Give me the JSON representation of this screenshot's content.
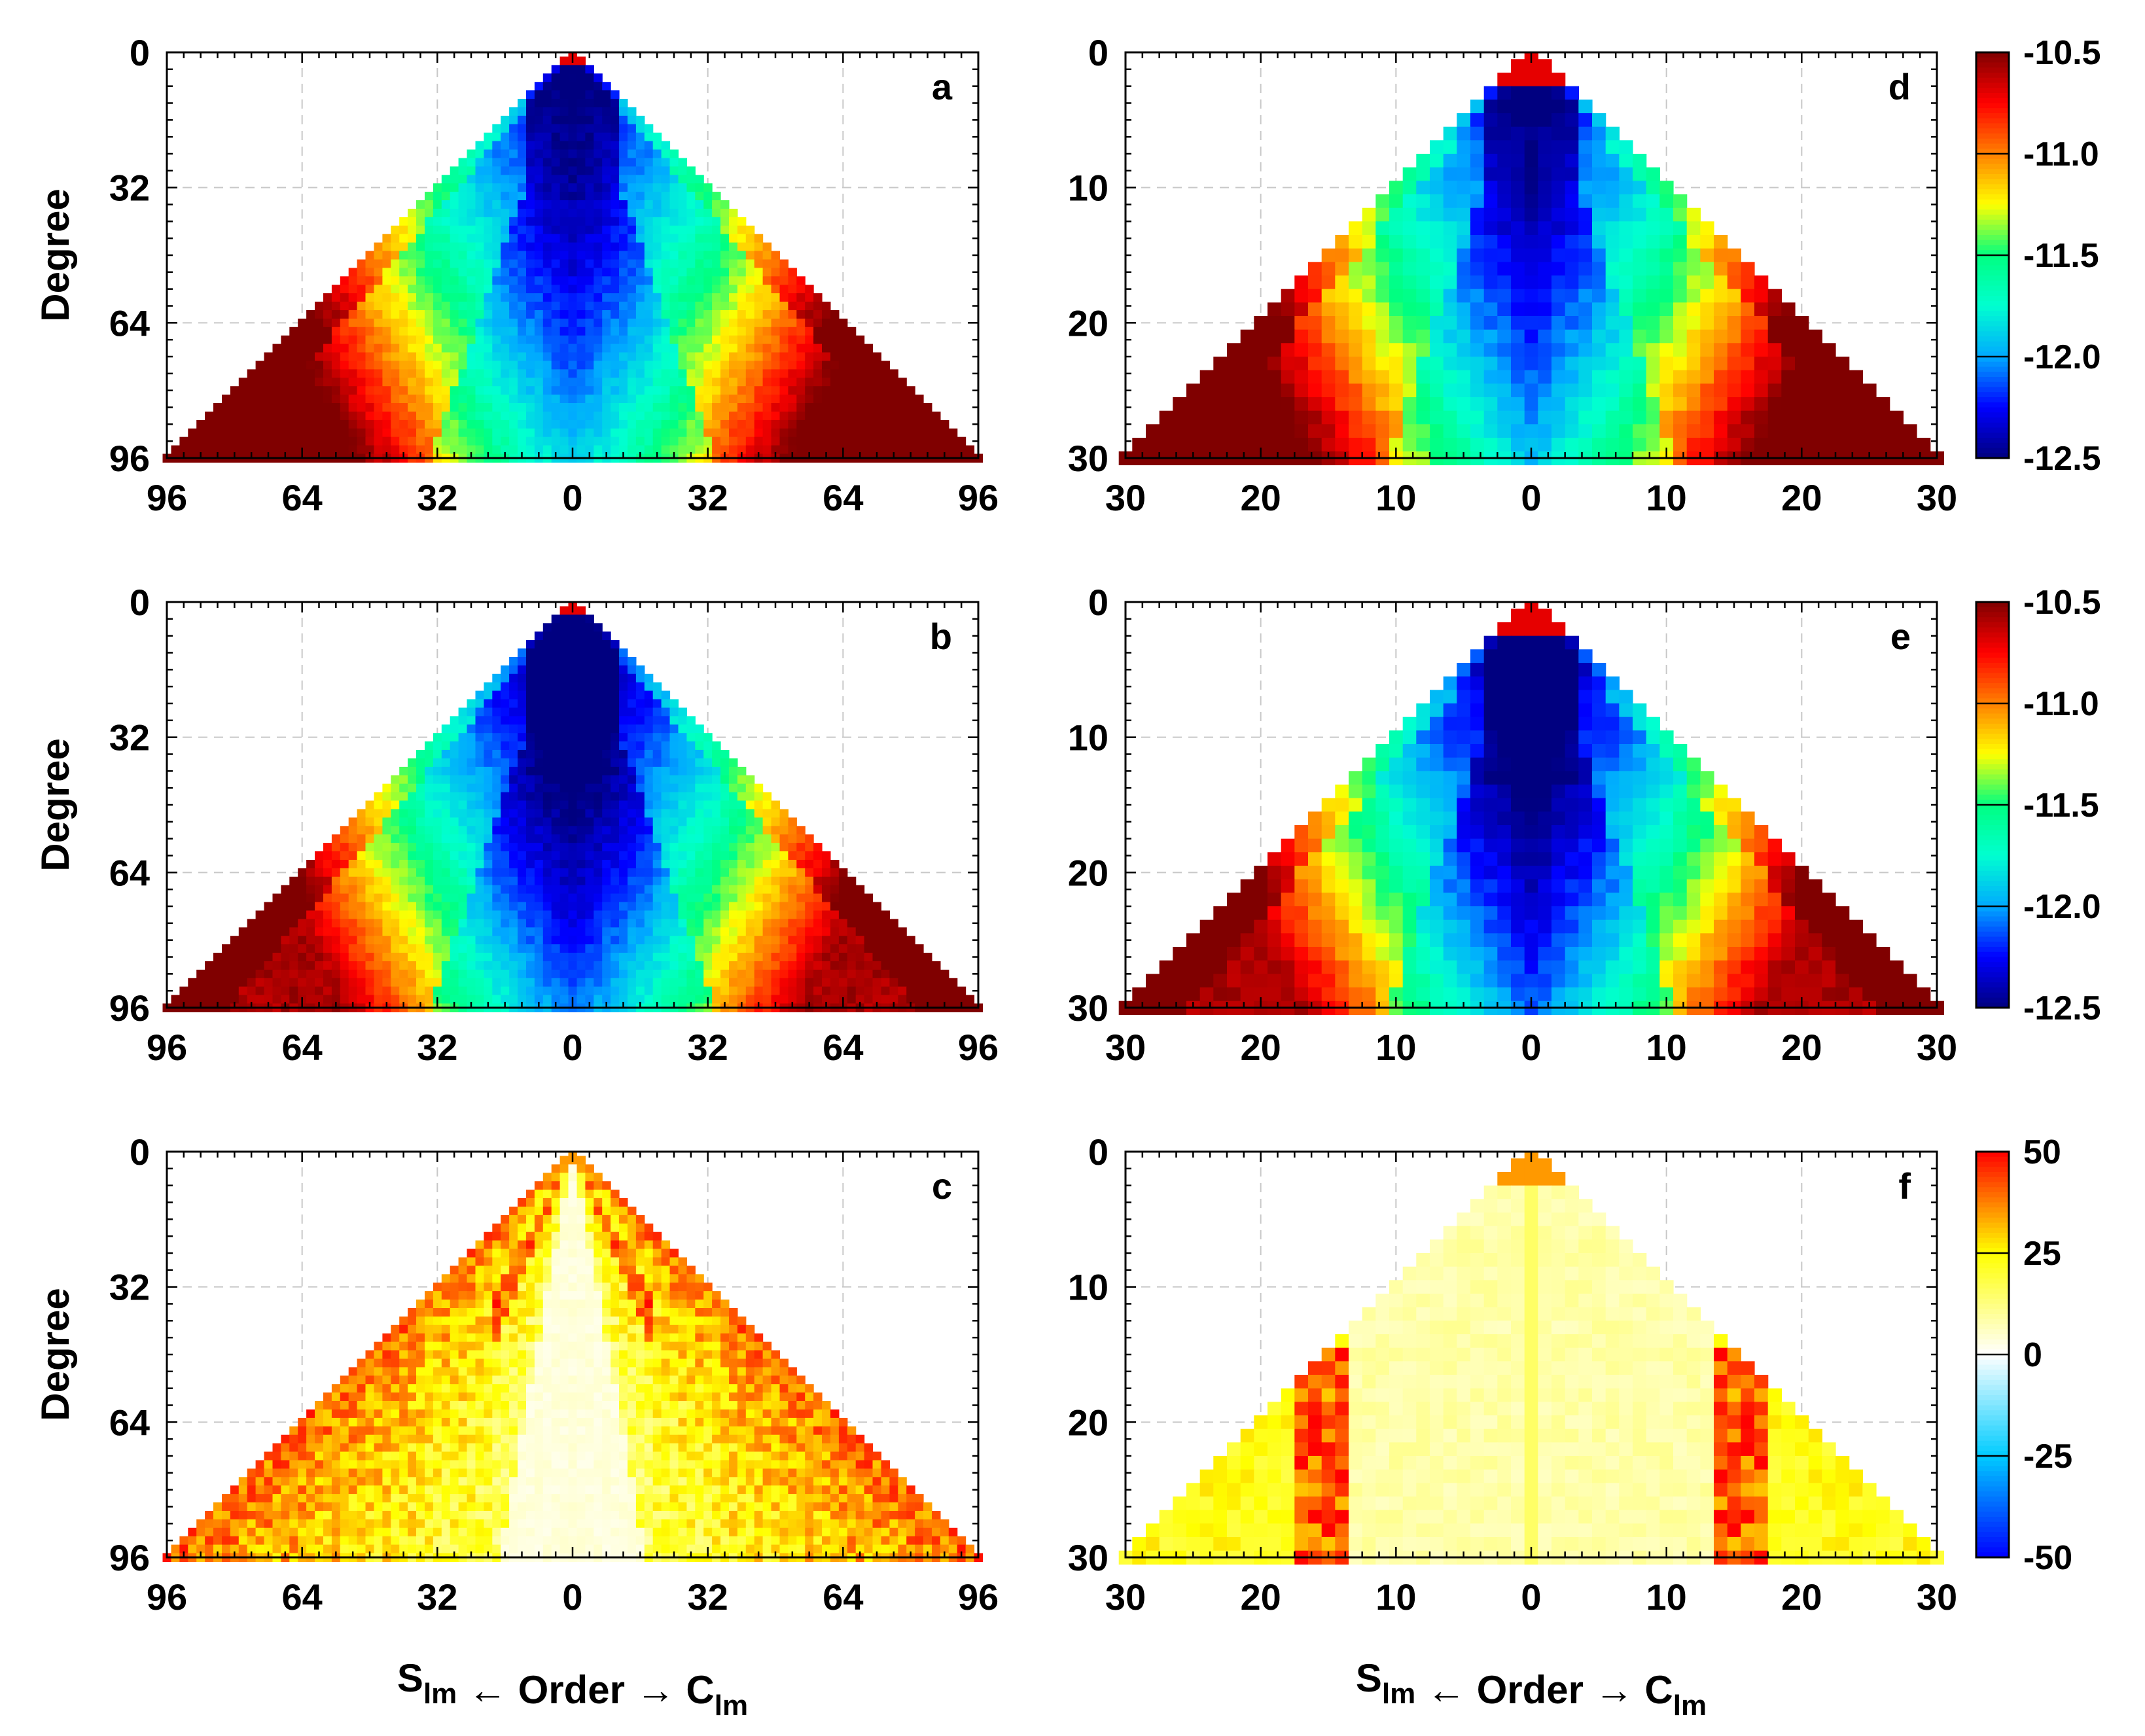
{
  "chart_data": [
    {
      "id": "a",
      "type": "heatmap",
      "panel_label": "a",
      "title": "",
      "ylabel": "Degree",
      "xlabel": "",
      "xlim": [
        -96,
        96
      ],
      "ylim": [
        0,
        96
      ],
      "y_inverted": true,
      "x_tick_labels": [
        "96",
        "64",
        "32",
        "0",
        "32",
        "64",
        "96"
      ],
      "y_tick_labels": [
        "0",
        "32",
        "64",
        "96"
      ],
      "colorbar": "cb1",
      "value_range": [
        -12.5,
        -10.5
      ],
      "description_values": {
        "center_low": -12.5,
        "mid_band": -11.7,
        "edge_high": -10.7
      }
    },
    {
      "id": "b",
      "type": "heatmap",
      "panel_label": "b",
      "title": "",
      "ylabel": "Degree",
      "xlabel": "",
      "xlim": [
        -96,
        96
      ],
      "ylim": [
        0,
        96
      ],
      "y_inverted": true,
      "x_tick_labels": [
        "96",
        "64",
        "32",
        "0",
        "32",
        "64",
        "96"
      ],
      "y_tick_labels": [
        "0",
        "32",
        "64",
        "96"
      ],
      "colorbar": "cb2",
      "value_range": [
        -12.5,
        -10.5
      ]
    },
    {
      "id": "c",
      "type": "heatmap",
      "panel_label": "c",
      "title": "",
      "ylabel": "Degree",
      "xlabel": "S_lm ← Order → C_lm",
      "xlim": [
        -96,
        96
      ],
      "ylim": [
        0,
        96
      ],
      "y_inverted": true,
      "x_tick_labels": [
        "96",
        "64",
        "32",
        "0",
        "32",
        "64",
        "96"
      ],
      "y_tick_labels": [
        "0",
        "32",
        "64",
        "96"
      ],
      "colorbar": "cb3",
      "value_range": [
        -50,
        50
      ]
    },
    {
      "id": "d",
      "type": "heatmap",
      "panel_label": "d",
      "title": "",
      "ylabel": "",
      "xlabel": "",
      "xlim": [
        -30,
        30
      ],
      "ylim": [
        0,
        30
      ],
      "y_inverted": true,
      "x_tick_labels": [
        "30",
        "20",
        "10",
        "0",
        "10",
        "20",
        "30"
      ],
      "y_tick_labels": [
        "0",
        "10",
        "20",
        "30"
      ],
      "colorbar": "cb1",
      "value_range": [
        -12.5,
        -10.5
      ]
    },
    {
      "id": "e",
      "type": "heatmap",
      "panel_label": "e",
      "title": "",
      "ylabel": "",
      "xlabel": "",
      "xlim": [
        -30,
        30
      ],
      "ylim": [
        0,
        30
      ],
      "y_inverted": true,
      "x_tick_labels": [
        "30",
        "20",
        "10",
        "0",
        "10",
        "20",
        "30"
      ],
      "y_tick_labels": [
        "0",
        "10",
        "20",
        "30"
      ],
      "colorbar": "cb2",
      "value_range": [
        -12.5,
        -10.5
      ]
    },
    {
      "id": "f",
      "type": "heatmap",
      "panel_label": "f",
      "title": "",
      "ylabel": "",
      "xlabel": "S_lm ← Order → C_lm",
      "xlim": [
        -30,
        30
      ],
      "ylim": [
        0,
        30
      ],
      "y_inverted": true,
      "x_tick_labels": [
        "30",
        "20",
        "10",
        "0",
        "10",
        "20",
        "30"
      ],
      "y_tick_labels": [
        "0",
        "10",
        "20",
        "30"
      ],
      "colorbar": "cb3",
      "value_range": [
        -50,
        50
      ]
    }
  ],
  "colorbars": {
    "cb1": {
      "labels": [
        "-10.5",
        "-11.0",
        "-11.5",
        "-12.0",
        "-12.5"
      ],
      "range": [
        -12.5,
        -10.5
      ]
    },
    "cb2": {
      "labels": [
        "-10.5",
        "-11.0",
        "-11.5",
        "-12.0",
        "-12.5"
      ],
      "range": [
        -12.5,
        -10.5
      ]
    },
    "cb3": {
      "labels": [
        "50",
        "25",
        "0",
        "-25",
        "-50"
      ],
      "range": [
        -50,
        50
      ]
    }
  },
  "labels": {
    "degree": "Degree",
    "xaxis_S": "S",
    "xaxis_lm": "lm",
    "xaxis_middle": " ← Order → ",
    "xaxis_C": "C"
  },
  "colors": {
    "jet_stops": [
      "#000080",
      "#0000ff",
      "#00aaff",
      "#00ffd0",
      "#00ff80",
      "#ffff00",
      "#ff8000",
      "#ff0000",
      "#800000"
    ],
    "diverging_stops": [
      "#0000ff",
      "#00ccff",
      "#ffffff",
      "#ffff00",
      "#ff0000"
    ]
  }
}
